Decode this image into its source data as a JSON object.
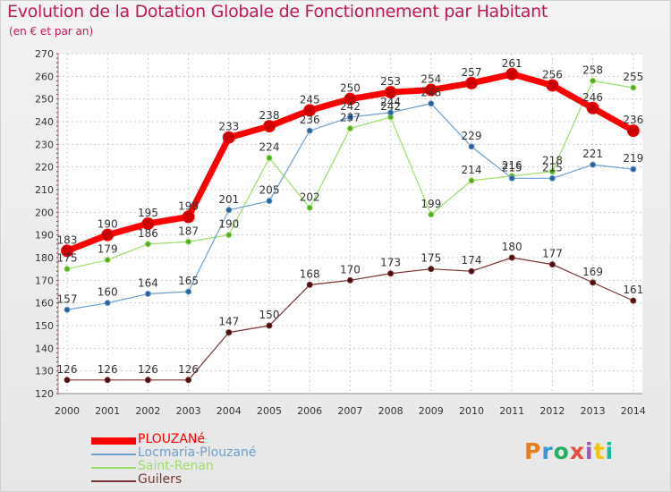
{
  "header": {
    "title": "Evolution de la Dotation Globale de Fonctionnement par Habitant",
    "subtitle": "(en € et par an)"
  },
  "logo": {
    "text": "Proxiti",
    "colors": [
      "#e67e22",
      "#3498db",
      "#27ae60",
      "#e74c3c",
      "#9b59b6",
      "#f1c40f",
      "#1abc9c"
    ]
  },
  "chart_data": {
    "type": "line",
    "title": "Evolution de la Dotation Globale de Fonctionnement par Habitant",
    "subtitle": "(en € et par an)",
    "xlabel": "",
    "ylabel": "",
    "x": [
      "2000",
      "2001",
      "2002",
      "2003",
      "2004",
      "2005",
      "2006",
      "2007",
      "2008",
      "2009",
      "2010",
      "2011",
      "2012",
      "2013",
      "2014"
    ],
    "ylim": [
      120,
      270
    ],
    "yticks": [
      120,
      130,
      140,
      150,
      160,
      170,
      180,
      190,
      200,
      210,
      220,
      230,
      240,
      250,
      260,
      270
    ],
    "grid": true,
    "legend_position": "bottom-left",
    "series": [
      {
        "name": "PLOUZANé",
        "color": "#ff0000",
        "values": [
          183,
          190,
          195,
          198,
          233,
          238,
          245,
          250,
          253,
          254,
          257,
          261,
          256,
          246,
          236
        ]
      },
      {
        "name": "Locmaria-Plouzané",
        "color": "#6a9fcf",
        "values": [
          157,
          160,
          164,
          165,
          201,
          205,
          236,
          242,
          244,
          248,
          229,
          215,
          215,
          221,
          219
        ]
      },
      {
        "name": "Saint-Renan",
        "color": "#99dd66",
        "values": [
          175,
          179,
          186,
          187,
          190,
          224,
          202,
          237,
          242,
          199,
          214,
          216,
          218,
          258,
          255
        ]
      },
      {
        "name": "Guilers",
        "color": "#7a3333",
        "values": [
          126,
          126,
          126,
          126,
          147,
          150,
          168,
          170,
          173,
          175,
          174,
          180,
          177,
          169,
          161
        ]
      }
    ]
  }
}
